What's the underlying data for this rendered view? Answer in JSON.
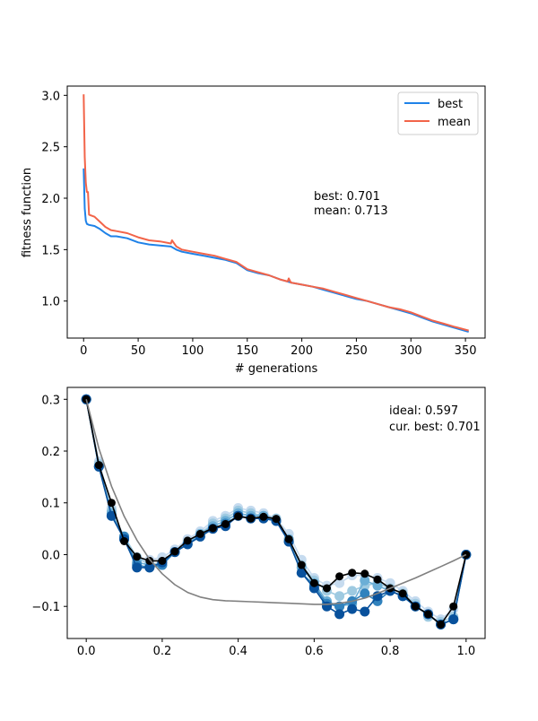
{
  "chart_data": [
    {
      "type": "line",
      "xlabel": "# generations",
      "ylabel": "fitness function",
      "xlim": [
        -15,
        368
      ],
      "ylim": [
        0.64,
        3.09
      ],
      "xticks": [
        0,
        50,
        100,
        150,
        200,
        250,
        300,
        350
      ],
      "yticks": [
        1.0,
        1.5,
        2.0,
        2.5,
        3.0
      ],
      "legend": {
        "position": "top-right"
      },
      "annotations": [
        "best: 0.701",
        "mean: 0.713"
      ],
      "series": [
        {
          "name": "best",
          "color": "#1f82e8",
          "points": [
            [
              0,
              2.29
            ],
            [
              1,
              1.9
            ],
            [
              2,
              1.78
            ],
            [
              3,
              1.75
            ],
            [
              5,
              1.74
            ],
            [
              10,
              1.73
            ],
            [
              15,
              1.7
            ],
            [
              20,
              1.66
            ],
            [
              25,
              1.63
            ],
            [
              30,
              1.63
            ],
            [
              40,
              1.61
            ],
            [
              50,
              1.57
            ],
            [
              60,
              1.55
            ],
            [
              70,
              1.54
            ],
            [
              80,
              1.53
            ],
            [
              85,
              1.5
            ],
            [
              90,
              1.48
            ],
            [
              100,
              1.46
            ],
            [
              110,
              1.44
            ],
            [
              120,
              1.42
            ],
            [
              130,
              1.4
            ],
            [
              140,
              1.37
            ],
            [
              150,
              1.3
            ],
            [
              160,
              1.27
            ],
            [
              170,
              1.25
            ],
            [
              180,
              1.21
            ],
            [
              190,
              1.18
            ],
            [
              200,
              1.16
            ],
            [
              210,
              1.14
            ],
            [
              220,
              1.11
            ],
            [
              230,
              1.08
            ],
            [
              240,
              1.05
            ],
            [
              250,
              1.02
            ],
            [
              260,
              1.0
            ],
            [
              270,
              0.97
            ],
            [
              280,
              0.94
            ],
            [
              290,
              0.91
            ],
            [
              300,
              0.88
            ],
            [
              310,
              0.84
            ],
            [
              320,
              0.8
            ],
            [
              330,
              0.77
            ],
            [
              340,
              0.74
            ],
            [
              353,
              0.701
            ]
          ]
        },
        {
          "name": "mean",
          "color": "#f26449",
          "points": [
            [
              0,
              3.01
            ],
            [
              1,
              2.4
            ],
            [
              2,
              2.15
            ],
            [
              3,
              2.06
            ],
            [
              4,
              2.06
            ],
            [
              5,
              1.84
            ],
            [
              10,
              1.82
            ],
            [
              15,
              1.77
            ],
            [
              20,
              1.72
            ],
            [
              25,
              1.69
            ],
            [
              30,
              1.68
            ],
            [
              40,
              1.66
            ],
            [
              50,
              1.62
            ],
            [
              60,
              1.59
            ],
            [
              70,
              1.58
            ],
            [
              80,
              1.56
            ],
            [
              81,
              1.59
            ],
            [
              85,
              1.53
            ],
            [
              90,
              1.5
            ],
            [
              100,
              1.48
            ],
            [
              110,
              1.46
            ],
            [
              120,
              1.44
            ],
            [
              130,
              1.41
            ],
            [
              140,
              1.38
            ],
            [
              150,
              1.31
            ],
            [
              160,
              1.28
            ],
            [
              170,
              1.25
            ],
            [
              180,
              1.21
            ],
            [
              187,
              1.19
            ],
            [
              188,
              1.22
            ],
            [
              190,
              1.18
            ],
            [
              200,
              1.16
            ],
            [
              210,
              1.14
            ],
            [
              220,
              1.12
            ],
            [
              230,
              1.09
            ],
            [
              240,
              1.06
            ],
            [
              250,
              1.03
            ],
            [
              260,
              1.0
            ],
            [
              270,
              0.97
            ],
            [
              280,
              0.94
            ],
            [
              290,
              0.92
            ],
            [
              300,
              0.89
            ],
            [
              310,
              0.85
            ],
            [
              320,
              0.81
            ],
            [
              330,
              0.78
            ],
            [
              340,
              0.75
            ],
            [
              353,
              0.713
            ]
          ]
        }
      ]
    },
    {
      "type": "line",
      "xlabel": "",
      "ylabel": "",
      "xlim": [
        -0.05,
        1.05
      ],
      "ylim": [
        -0.162,
        0.323
      ],
      "xticks": [
        0.0,
        0.2,
        0.4,
        0.6,
        0.8,
        1.0
      ],
      "yticks": [
        -0.1,
        0.0,
        0.1,
        0.2,
        0.3
      ],
      "annotations": [
        "ideal: 0.597",
        "cur. best: 0.701"
      ],
      "x": [
        0,
        0.0333,
        0.0667,
        0.1,
        0.1333,
        0.1667,
        0.2,
        0.2333,
        0.2667,
        0.3,
        0.3333,
        0.3667,
        0.4,
        0.4333,
        0.4667,
        0.5,
        0.5333,
        0.5667,
        0.6,
        0.6333,
        0.6667,
        0.7,
        0.7333,
        0.7667,
        0.8,
        0.8333,
        0.8667,
        0.9,
        0.9333,
        0.9667,
        1.0
      ],
      "series": [
        {
          "color": "#c6dbef",
          "values": [
            0.3,
            0.18,
            0.09,
            0.03,
            -0.01,
            -0.01,
            -0.005,
            0.01,
            0.03,
            0.045,
            0.065,
            0.075,
            0.09,
            0.085,
            0.08,
            0.07,
            0.04,
            -0.01,
            -0.045,
            -0.06,
            -0.055,
            -0.04,
            -0.04,
            -0.045,
            -0.055,
            -0.07,
            -0.09,
            -0.11,
            -0.125,
            -0.105,
            0.0
          ]
        },
        {
          "color": "#9ecae1",
          "values": [
            0.3,
            0.175,
            0.085,
            0.035,
            -0.005,
            -0.02,
            -0.015,
            0.005,
            0.025,
            0.04,
            0.06,
            0.07,
            0.085,
            0.08,
            0.075,
            0.07,
            0.03,
            -0.02,
            -0.05,
            -0.07,
            -0.08,
            -0.07,
            -0.06,
            -0.055,
            -0.065,
            -0.075,
            -0.095,
            -0.12,
            -0.13,
            -0.12,
            0.0
          ]
        },
        {
          "color": "#6baed6",
          "values": [
            0.3,
            0.17,
            0.08,
            0.03,
            -0.015,
            -0.02,
            -0.02,
            0.005,
            0.02,
            0.04,
            0.055,
            0.065,
            0.08,
            0.075,
            0.075,
            0.065,
            0.03,
            -0.025,
            -0.055,
            -0.09,
            -0.1,
            -0.095,
            -0.05,
            -0.06,
            -0.07,
            -0.08,
            -0.1,
            -0.115,
            -0.135,
            -0.125,
            0.0
          ]
        },
        {
          "color": "#3182bd",
          "values": [
            0.3,
            0.17,
            0.075,
            0.035,
            -0.02,
            -0.025,
            -0.02,
            0.005,
            0.02,
            0.035,
            0.05,
            0.06,
            0.075,
            0.07,
            0.07,
            0.065,
            0.025,
            -0.035,
            -0.06,
            -0.095,
            -0.1,
            -0.09,
            -0.075,
            -0.09,
            -0.07,
            -0.08,
            -0.1,
            -0.115,
            -0.135,
            -0.125,
            0.0
          ]
        },
        {
          "color": "#08519c",
          "values": [
            0.3,
            0.17,
            0.075,
            0.03,
            -0.025,
            -0.025,
            -0.015,
            0.005,
            0.02,
            0.035,
            0.05,
            0.055,
            0.075,
            0.07,
            0.07,
            0.065,
            0.025,
            -0.035,
            -0.065,
            -0.1,
            -0.115,
            -0.105,
            -0.11,
            -0.08,
            -0.07,
            -0.08,
            -0.1,
            -0.115,
            -0.135,
            -0.125,
            0.0
          ]
        },
        {
          "color": "#000000",
          "values": [
            0.3,
            0.173,
            0.1,
            0.026,
            -0.004,
            -0.012,
            -0.012,
            0.006,
            0.027,
            0.04,
            0.051,
            0.059,
            0.074,
            0.07,
            0.073,
            0.069,
            0.03,
            -0.02,
            -0.055,
            -0.065,
            -0.042,
            -0.035,
            -0.037,
            -0.048,
            -0.065,
            -0.075,
            -0.1,
            -0.115,
            -0.135,
            -0.1,
            0.0
          ]
        },
        {
          "color": "#808080",
          "values": [
            0.3,
            0.205,
            0.132,
            0.074,
            0.028,
            -0.009,
            -0.037,
            -0.058,
            -0.073,
            -0.082,
            -0.087,
            -0.089,
            -0.09,
            -0.091,
            -0.092,
            -0.093,
            -0.094,
            -0.095,
            -0.096,
            -0.096,
            -0.094,
            -0.09,
            -0.084,
            -0.075,
            -0.065,
            -0.055,
            -0.045,
            -0.034,
            -0.023,
            -0.012,
            0.0
          ]
        }
      ]
    }
  ]
}
